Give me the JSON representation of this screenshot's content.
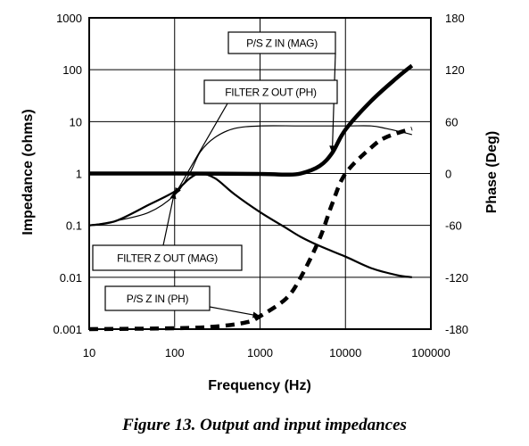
{
  "caption": "Figure 13. Output and input impedances",
  "chart_data": {
    "type": "line",
    "xlabel": "Frequency (Hz)",
    "ylabel_left": "Impedance (ohms)",
    "ylabel_right": "Phase (Deg)",
    "x_scale": "log",
    "xlim": [
      10,
      100000
    ],
    "ylim_left": [
      0.001,
      1000
    ],
    "ylim_right": [
      -180,
      180
    ],
    "grid": true,
    "x_ticks": [
      "10",
      "100",
      "1000",
      "10000",
      "100000"
    ],
    "y_ticks_left": [
      "1000",
      "100",
      "10",
      "1",
      "0.1",
      "0.01",
      "0.001"
    ],
    "y_ticks_right": [
      "180",
      "120",
      "60",
      "0",
      "-60",
      "-120",
      "-180"
    ],
    "series": [
      {
        "name": "P/S Z IN (MAG)",
        "axis": "left",
        "style": "thick-solid",
        "points": [
          [
            10,
            1
          ],
          [
            100,
            1
          ],
          [
            1000,
            0.98
          ],
          [
            2000,
            0.95
          ],
          [
            3000,
            1.0
          ],
          [
            5000,
            1.4
          ],
          [
            7000,
            2.5
          ],
          [
            10000,
            7
          ],
          [
            20000,
            25
          ],
          [
            40000,
            70
          ],
          [
            60000,
            120
          ]
        ]
      },
      {
        "name": "FILTER Z OUT (PH)",
        "axis": "right",
        "style": "thin-solid",
        "points": [
          [
            10,
            -60
          ],
          [
            20,
            -55
          ],
          [
            50,
            -45
          ],
          [
            100,
            -25
          ],
          [
            150,
            0
          ],
          [
            200,
            25
          ],
          [
            300,
            42
          ],
          [
            500,
            52
          ],
          [
            1000,
            55
          ],
          [
            3000,
            55
          ],
          [
            10000,
            55
          ],
          [
            20000,
            55
          ],
          [
            30000,
            52
          ],
          [
            60000,
            45
          ]
        ]
      },
      {
        "name": "FILTER Z OUT (MAG)",
        "axis": "left",
        "style": "medium-solid",
        "points": [
          [
            10,
            0.1
          ],
          [
            20,
            0.12
          ],
          [
            50,
            0.25
          ],
          [
            100,
            0.45
          ],
          [
            150,
            0.8
          ],
          [
            200,
            1.0
          ],
          [
            300,
            0.8
          ],
          [
            500,
            0.4
          ],
          [
            1000,
            0.18
          ],
          [
            2000,
            0.09
          ],
          [
            3000,
            0.06
          ],
          [
            5000,
            0.04
          ],
          [
            10000,
            0.025
          ],
          [
            20000,
            0.015
          ],
          [
            40000,
            0.011
          ],
          [
            60000,
            0.01
          ]
        ]
      },
      {
        "name": "P/S Z IN (PH)",
        "axis": "right",
        "style": "thick-dashed",
        "points": [
          [
            10,
            -180
          ],
          [
            100,
            -179
          ],
          [
            300,
            -177
          ],
          [
            700,
            -172
          ],
          [
            1000,
            -165
          ],
          [
            2000,
            -145
          ],
          [
            3000,
            -120
          ],
          [
            5000,
            -75
          ],
          [
            7000,
            -35
          ],
          [
            10000,
            0
          ],
          [
            20000,
            30
          ],
          [
            30000,
            42
          ],
          [
            60000,
            52
          ]
        ]
      }
    ],
    "annotations": [
      {
        "text": "P/S Z IN (MAG)",
        "series": 0
      },
      {
        "text": "FILTER Z OUT (PH)",
        "series": 1
      },
      {
        "text": "FILTER Z OUT (MAG)",
        "series": 2
      },
      {
        "text": "P/S Z IN (PH)",
        "series": 3
      }
    ]
  }
}
